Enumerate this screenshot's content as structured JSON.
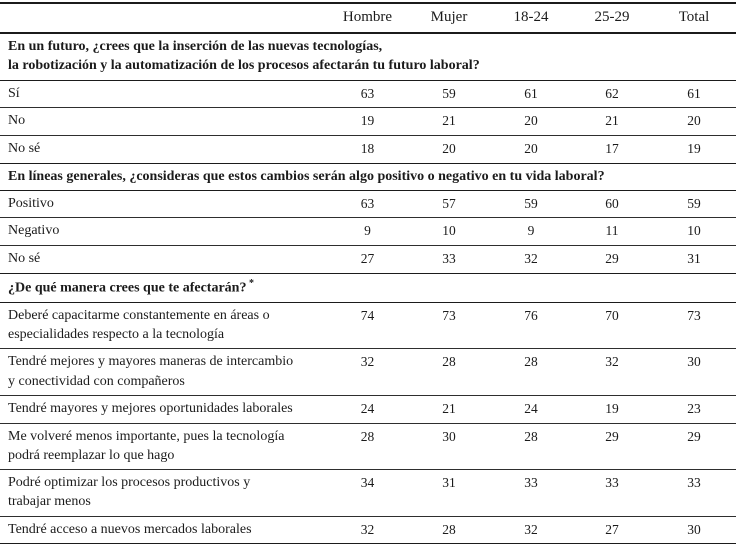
{
  "table": {
    "columns": [
      "",
      "Hombre",
      "Mujer",
      "18-24",
      "25-29",
      "Total"
    ],
    "footnote_marker": "*",
    "sections": [
      {
        "question_lines": [
          "En un futuro, ¿crees que la inserción de las nuevas tecnologías,",
          "la robotización y la automatización de los procesos afectarán tu futuro laboral?"
        ],
        "asterisk": "",
        "rows": [
          {
            "label_lines": [
              "Sí"
            ],
            "values": [
              63,
              59,
              61,
              62,
              61
            ]
          },
          {
            "label_lines": [
              "No"
            ],
            "values": [
              19,
              21,
              20,
              21,
              20
            ]
          },
          {
            "label_lines": [
              "No sé"
            ],
            "values": [
              18,
              20,
              20,
              17,
              19
            ]
          }
        ]
      },
      {
        "question_lines": [
          "En líneas generales, ¿consideras que estos cambios serán algo positivo o negativo en tu vida laboral?"
        ],
        "asterisk": "",
        "rows": [
          {
            "label_lines": [
              "Positivo"
            ],
            "values": [
              63,
              57,
              59,
              60,
              59
            ]
          },
          {
            "label_lines": [
              "Negativo"
            ],
            "values": [
              9,
              10,
              9,
              11,
              10
            ]
          },
          {
            "label_lines": [
              "No sé"
            ],
            "values": [
              27,
              33,
              32,
              29,
              31
            ]
          }
        ]
      },
      {
        "question_lines": [
          "¿De qué manera crees que te afectarán?"
        ],
        "asterisk": "*",
        "rows": [
          {
            "label_lines": [
              "Deberé capacitarme constantemente en áreas o",
              "especialidades respecto a la tecnología"
            ],
            "values": [
              74,
              73,
              76,
              70,
              73
            ]
          },
          {
            "label_lines": [
              "Tendré mejores y mayores maneras de intercambio",
              "y conectividad con compañeros"
            ],
            "values": [
              32,
              28,
              28,
              32,
              30
            ]
          },
          {
            "label_lines": [
              "Tendré mayores y mejores oportunidades laborales"
            ],
            "values": [
              24,
              21,
              24,
              19,
              23
            ]
          },
          {
            "label_lines": [
              "Me volveré menos importante, pues la tecnología",
              "podrá reemplazar lo que hago"
            ],
            "values": [
              28,
              30,
              28,
              29,
              29
            ]
          },
          {
            "label_lines": [
              "Podré optimizar los procesos productivos y",
              "trabajar menos"
            ],
            "values": [
              34,
              31,
              33,
              33,
              33
            ]
          },
          {
            "label_lines": [
              "Tendré acceso a nuevos mercados laborales"
            ],
            "values": [
              32,
              28,
              32,
              27,
              30
            ]
          }
        ]
      }
    ]
  }
}
